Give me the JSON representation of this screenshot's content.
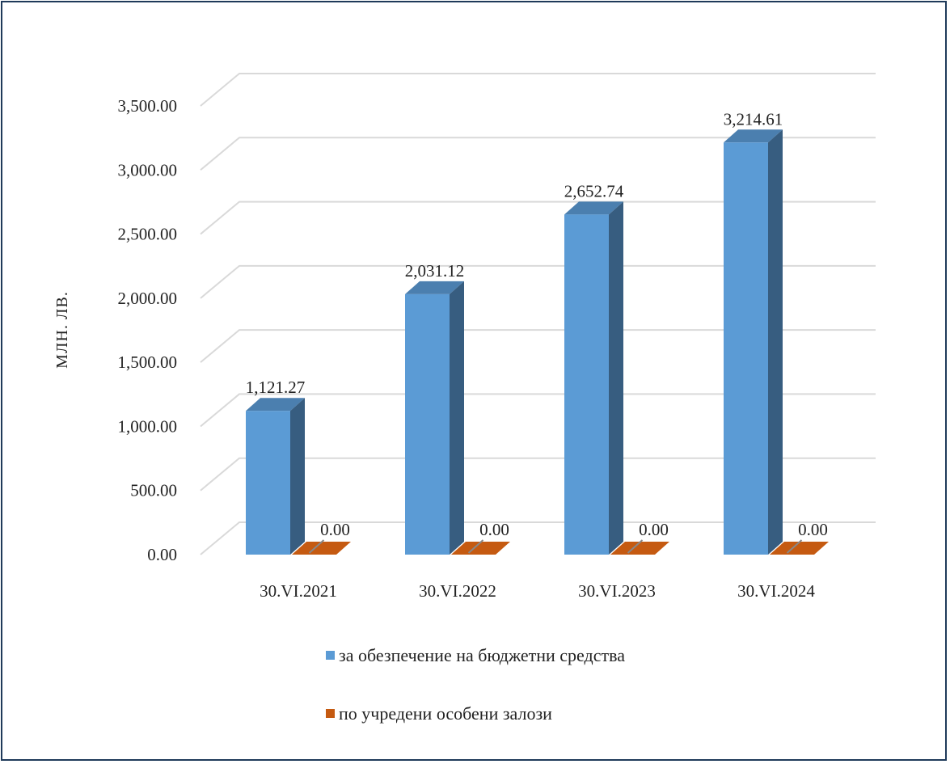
{
  "chart_data": {
    "type": "bar",
    "categories": [
      "30.VI.2021",
      "30.VI.2022",
      "30.VI.2023",
      "30.VI.2024"
    ],
    "series": [
      {
        "name": "за обезпечение на бюджетни средства",
        "values": [
          1121.27,
          2031.12,
          2652.74,
          3214.61
        ],
        "labels": [
          "1,121.27",
          "2,031.12",
          "2,652.74",
          "3,214.61"
        ],
        "color": "#5b9bd5"
      },
      {
        "name": "по учредени особени залози",
        "values": [
          0,
          0,
          0,
          0
        ],
        "labels": [
          "0.00",
          "0.00",
          "0.00",
          "0.00"
        ],
        "color": "#c55a11"
      }
    ],
    "title": "",
    "xlabel": "",
    "ylabel": "МЛН. ЛВ.",
    "ylim": [
      0,
      3500
    ],
    "yticks": [
      "0.00",
      "500.00",
      "1,000.00",
      "1,500.00",
      "2,000.00",
      "2,500.00",
      "3,000.00",
      "3,500.00"
    ],
    "grid": true,
    "style": "3d-column",
    "legend_position": "bottom"
  }
}
